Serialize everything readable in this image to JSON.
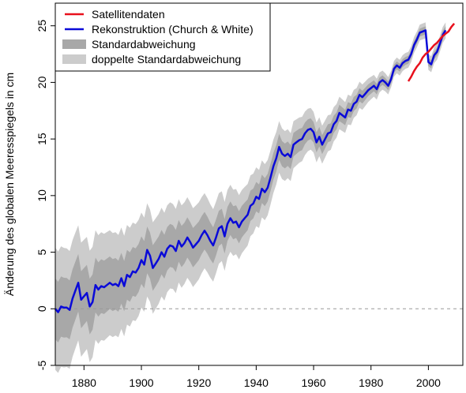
{
  "chart_data": {
    "type": "line",
    "title": "",
    "xlabel": "",
    "ylabel": "Änderung des globalen Meeresspiegels in cm",
    "xlim": [
      1870,
      2012
    ],
    "ylim": [
      -5,
      27
    ],
    "xticks": [
      "1880",
      "1900",
      "1920",
      "1940",
      "1960",
      "1980",
      "2000"
    ],
    "yticks": [
      "-5",
      "0",
      "5",
      "10",
      "15",
      "20",
      "25"
    ],
    "grid": false,
    "reference_line": {
      "y": 0,
      "style": "dashed",
      "color": "#999999"
    },
    "legend": {
      "position": "top-left",
      "entries": [
        {
          "label": "Satellitendaten",
          "color": "#e8101c",
          "kind": "line"
        },
        {
          "label": "Rekonstruktion (Church & White)",
          "color": "#0a0ad8",
          "kind": "line"
        },
        {
          "label": "Standardabweichung",
          "color": "#a8a8a8",
          "kind": "band"
        },
        {
          "label": "doppelte Standardabweichung",
          "color": "#cccccc",
          "kind": "band"
        }
      ]
    },
    "series": [
      {
        "name": "Rekonstruktion (Church & White)",
        "color": "#0a0ad8",
        "points": [
          [
            1870,
            0.0
          ],
          [
            1871,
            -0.3
          ],
          [
            1872,
            0.2
          ],
          [
            1873,
            0.1
          ],
          [
            1874,
            0.1
          ],
          [
            1875,
            -0.1
          ],
          [
            1876,
            0.9
          ],
          [
            1877,
            1.6
          ],
          [
            1878,
            2.3
          ],
          [
            1879,
            0.8
          ],
          [
            1880,
            1.1
          ],
          [
            1881,
            1.4
          ],
          [
            1882,
            0.2
          ],
          [
            1883,
            0.6
          ],
          [
            1884,
            2.1
          ],
          [
            1885,
            1.7
          ],
          [
            1886,
            2.0
          ],
          [
            1887,
            1.9
          ],
          [
            1888,
            2.1
          ],
          [
            1889,
            2.3
          ],
          [
            1890,
            2.1
          ],
          [
            1891,
            2.2
          ],
          [
            1892,
            2.0
          ],
          [
            1893,
            2.7
          ],
          [
            1894,
            2.0
          ],
          [
            1895,
            3.0
          ],
          [
            1896,
            2.8
          ],
          [
            1897,
            3.3
          ],
          [
            1898,
            3.2
          ],
          [
            1899,
            3.6
          ],
          [
            1900,
            4.3
          ],
          [
            1901,
            3.9
          ],
          [
            1902,
            5.2
          ],
          [
            1903,
            4.7
          ],
          [
            1904,
            3.6
          ],
          [
            1905,
            4.0
          ],
          [
            1906,
            4.4
          ],
          [
            1907,
            5.0
          ],
          [
            1908,
            4.6
          ],
          [
            1909,
            5.3
          ],
          [
            1910,
            5.6
          ],
          [
            1911,
            5.5
          ],
          [
            1912,
            5.1
          ],
          [
            1913,
            6.0
          ],
          [
            1914,
            5.5
          ],
          [
            1915,
            5.8
          ],
          [
            1916,
            6.3
          ],
          [
            1917,
            5.9
          ],
          [
            1918,
            5.4
          ],
          [
            1919,
            5.7
          ],
          [
            1920,
            6.0
          ],
          [
            1921,
            6.5
          ],
          [
            1922,
            6.9
          ],
          [
            1923,
            6.5
          ],
          [
            1924,
            6.0
          ],
          [
            1925,
            5.6
          ],
          [
            1926,
            6.3
          ],
          [
            1927,
            7.1
          ],
          [
            1928,
            7.3
          ],
          [
            1929,
            6.4
          ],
          [
            1930,
            7.5
          ],
          [
            1931,
            8.0
          ],
          [
            1932,
            7.6
          ],
          [
            1933,
            7.7
          ],
          [
            1934,
            7.2
          ],
          [
            1935,
            7.7
          ],
          [
            1936,
            8.0
          ],
          [
            1937,
            8.3
          ],
          [
            1938,
            9.1
          ],
          [
            1939,
            9.3
          ],
          [
            1940,
            9.9
          ],
          [
            1941,
            9.7
          ],
          [
            1942,
            10.6
          ],
          [
            1943,
            10.3
          ],
          [
            1944,
            10.7
          ],
          [
            1945,
            11.6
          ],
          [
            1946,
            12.6
          ],
          [
            1947,
            13.3
          ],
          [
            1948,
            14.3
          ],
          [
            1949,
            13.7
          ],
          [
            1950,
            13.5
          ],
          [
            1951,
            13.7
          ],
          [
            1952,
            13.4
          ],
          [
            1953,
            14.5
          ],
          [
            1954,
            14.7
          ],
          [
            1955,
            14.9
          ],
          [
            1956,
            15.0
          ],
          [
            1957,
            15.5
          ],
          [
            1958,
            15.8
          ],
          [
            1959,
            15.9
          ],
          [
            1960,
            15.6
          ],
          [
            1961,
            14.7
          ],
          [
            1962,
            15.2
          ],
          [
            1963,
            14.5
          ],
          [
            1964,
            15.0
          ],
          [
            1965,
            15.5
          ],
          [
            1966,
            15.6
          ],
          [
            1967,
            16.3
          ],
          [
            1968,
            16.6
          ],
          [
            1969,
            17.3
          ],
          [
            1970,
            17.1
          ],
          [
            1971,
            16.9
          ],
          [
            1972,
            17.6
          ],
          [
            1973,
            17.5
          ],
          [
            1974,
            18.1
          ],
          [
            1975,
            18.3
          ],
          [
            1976,
            18.9
          ],
          [
            1977,
            18.7
          ],
          [
            1978,
            19.0
          ],
          [
            1979,
            19.3
          ],
          [
            1980,
            19.5
          ],
          [
            1981,
            19.7
          ],
          [
            1982,
            19.4
          ],
          [
            1983,
            20.0
          ],
          [
            1984,
            20.2
          ],
          [
            1985,
            20.0
          ],
          [
            1986,
            19.7
          ],
          [
            1987,
            20.3
          ],
          [
            1988,
            21.2
          ],
          [
            1989,
            21.5
          ],
          [
            1990,
            21.3
          ],
          [
            1991,
            21.7
          ],
          [
            1992,
            21.9
          ],
          [
            1993,
            22.0
          ],
          [
            1994,
            22.5
          ],
          [
            1995,
            23.3
          ],
          [
            1996,
            23.8
          ],
          [
            1997,
            24.4
          ],
          [
            1998,
            24.5
          ],
          [
            1999,
            24.6
          ],
          [
            2000,
            21.8
          ],
          [
            2001,
            21.6
          ],
          [
            2002,
            22.4
          ],
          [
            2003,
            22.7
          ],
          [
            2004,
            23.4
          ],
          [
            2005,
            24.2
          ],
          [
            2006,
            24.6
          ]
        ]
      },
      {
        "name": "Satellitendaten",
        "color": "#e8101c",
        "points": [
          [
            1993,
            20.1
          ],
          [
            1994,
            20.5
          ],
          [
            1995,
            21.0
          ],
          [
            1996,
            21.4
          ],
          [
            1997,
            21.7
          ],
          [
            1998,
            22.2
          ],
          [
            1999,
            22.5
          ],
          [
            2000,
            22.7
          ],
          [
            2001,
            23.0
          ],
          [
            2002,
            23.3
          ],
          [
            2003,
            23.5
          ],
          [
            2004,
            23.8
          ],
          [
            2005,
            24.1
          ],
          [
            2006,
            24.3
          ],
          [
            2007,
            24.5
          ],
          [
            2008,
            24.9
          ],
          [
            2009,
            25.2
          ]
        ]
      }
    ]
  }
}
